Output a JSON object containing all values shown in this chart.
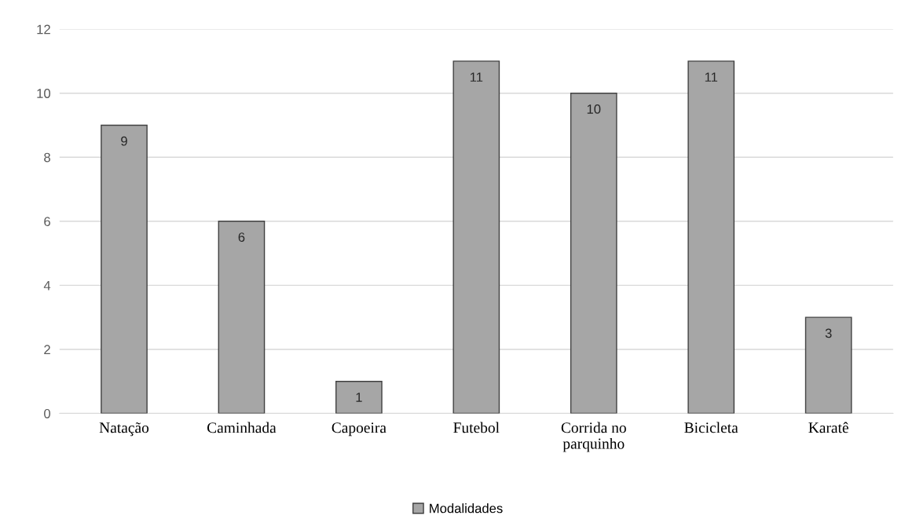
{
  "chart_data": {
    "type": "bar",
    "categories": [
      "Natação",
      "Caminhada",
      "Capoeira",
      "Futebol",
      "Corrida no\nparquinho",
      "Bicicleta",
      "Karatê"
    ],
    "series": [
      {
        "name": "Modalidades",
        "color": "#a6a6a6",
        "values": [
          9,
          6,
          1,
          11,
          10,
          11,
          3
        ]
      }
    ],
    "ylim": [
      0,
      12
    ],
    "yticks": [
      0,
      2,
      4,
      6,
      8,
      10,
      12
    ],
    "grid": "y",
    "legend": "bottom",
    "data_labels": true
  }
}
